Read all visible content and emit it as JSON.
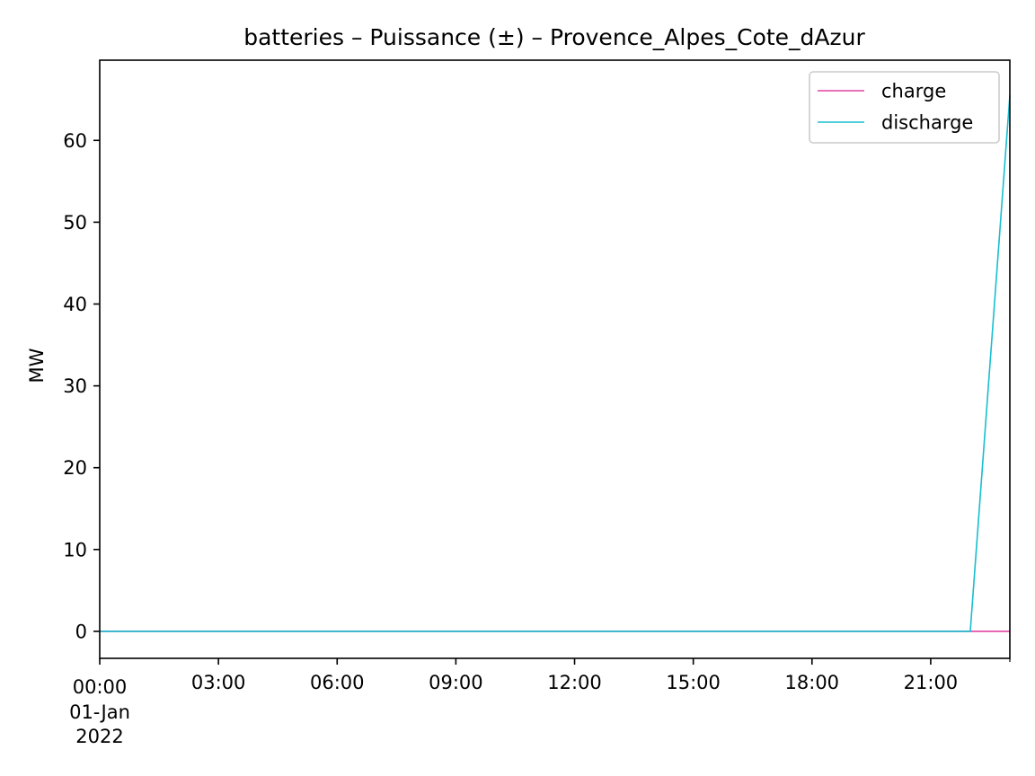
{
  "chart_data": {
    "type": "line",
    "title": "batteries – Puissance (±) – Provence_Alpes_Cote_dAzur",
    "xlabel": "",
    "ylabel": "MW",
    "x": [
      "00:00",
      "01:00",
      "02:00",
      "03:00",
      "04:00",
      "05:00",
      "06:00",
      "07:00",
      "08:00",
      "09:00",
      "10:00",
      "11:00",
      "12:00",
      "13:00",
      "14:00",
      "15:00",
      "16:00",
      "17:00",
      "18:00",
      "19:00",
      "20:00",
      "21:00",
      "22:00",
      "23:00"
    ],
    "series": [
      {
        "name": "charge",
        "color": "#e040a0",
        "values": [
          0,
          0,
          0,
          0,
          0,
          0,
          0,
          0,
          0,
          0,
          0,
          0,
          0,
          0,
          0,
          0,
          0,
          0,
          0,
          0,
          0,
          0,
          0,
          0
        ]
      },
      {
        "name": "discharge",
        "color": "#17becf",
        "values": [
          0,
          0,
          0,
          0,
          0,
          0,
          0,
          0,
          0,
          0,
          0,
          0,
          0,
          0,
          0,
          0,
          0,
          0,
          0,
          0,
          0,
          0,
          0,
          65.5
        ]
      }
    ],
    "xlim": [
      "00:00",
      "23:00"
    ],
    "ylim": [
      -3.3,
      69.8
    ],
    "x_ticks": [
      "00:00",
      "03:00",
      "06:00",
      "09:00",
      "12:00",
      "15:00",
      "18:00",
      "21:00"
    ],
    "x_tick_first_extra": [
      "01-Jan",
      "2022"
    ],
    "y_ticks": [
      0,
      10,
      20,
      30,
      40,
      50,
      60
    ],
    "grid": false,
    "legend_position": "top-right"
  }
}
